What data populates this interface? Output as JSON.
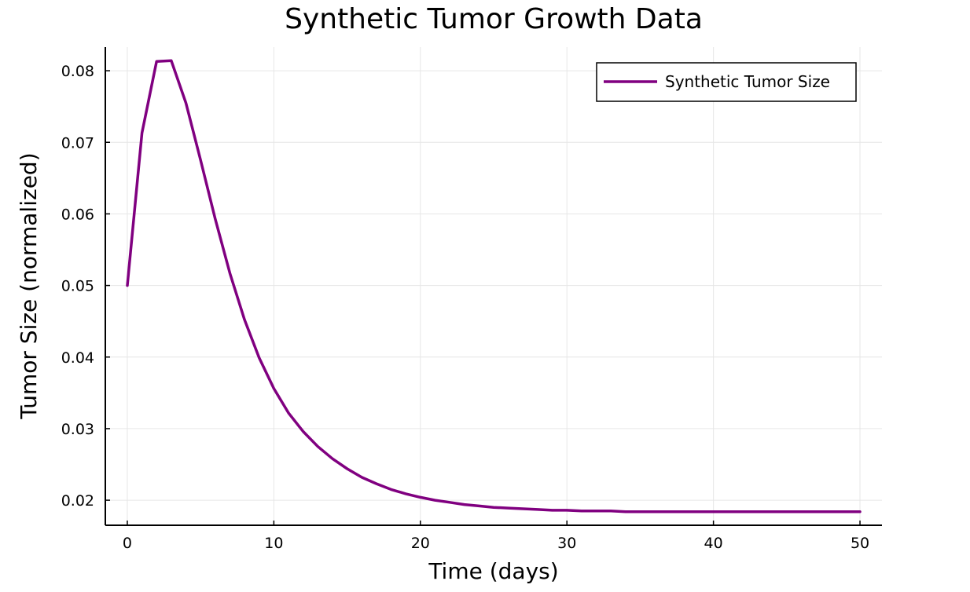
{
  "chart_data": {
    "type": "line",
    "title": "Synthetic Tumor Growth Data",
    "xlabel": "Time (days)",
    "ylabel": "Tumor Size (normalized)",
    "xlim": [
      -1.5,
      51.5
    ],
    "ylim": [
      0.0165,
      0.0833
    ],
    "x_ticks": [
      0,
      10,
      20,
      30,
      40,
      50
    ],
    "x_tick_labels": [
      "0",
      "10",
      "20",
      "30",
      "40",
      "50"
    ],
    "y_ticks": [
      0.02,
      0.03,
      0.04,
      0.05,
      0.06,
      0.07,
      0.08
    ],
    "y_tick_labels": [
      "0.02",
      "0.03",
      "0.04",
      "0.05",
      "0.06",
      "0.07",
      "0.08"
    ],
    "grid": true,
    "legend_position": "top-right",
    "series": [
      {
        "name": "Synthetic Tumor Size",
        "color": "#800080",
        "x": [
          0,
          1,
          2,
          3,
          4,
          5,
          6,
          7,
          8,
          9,
          10,
          11,
          12,
          13,
          14,
          15,
          16,
          17,
          18,
          19,
          20,
          21,
          22,
          23,
          24,
          25,
          26,
          27,
          28,
          29,
          30,
          31,
          32,
          33,
          34,
          35,
          36,
          37,
          38,
          39,
          40,
          41,
          42,
          43,
          44,
          45,
          46,
          47,
          48,
          49,
          50
        ],
        "y": [
          0.05,
          0.0713,
          0.0813,
          0.0814,
          0.0755,
          0.0675,
          0.0593,
          0.0517,
          0.0452,
          0.0399,
          0.0356,
          0.0322,
          0.0296,
          0.0275,
          0.0258,
          0.0244,
          0.0232,
          0.0223,
          0.0215,
          0.0209,
          0.0204,
          0.02,
          0.0197,
          0.0194,
          0.0192,
          0.019,
          0.0189,
          0.0188,
          0.0187,
          0.0186,
          0.0186,
          0.0185,
          0.0185,
          0.0185,
          0.0184,
          0.0184,
          0.0184,
          0.0184,
          0.0184,
          0.0184,
          0.0184,
          0.0184,
          0.0184,
          0.0184,
          0.0184,
          0.0184,
          0.0184,
          0.0184,
          0.0184,
          0.0184,
          0.0184
        ]
      }
    ]
  }
}
